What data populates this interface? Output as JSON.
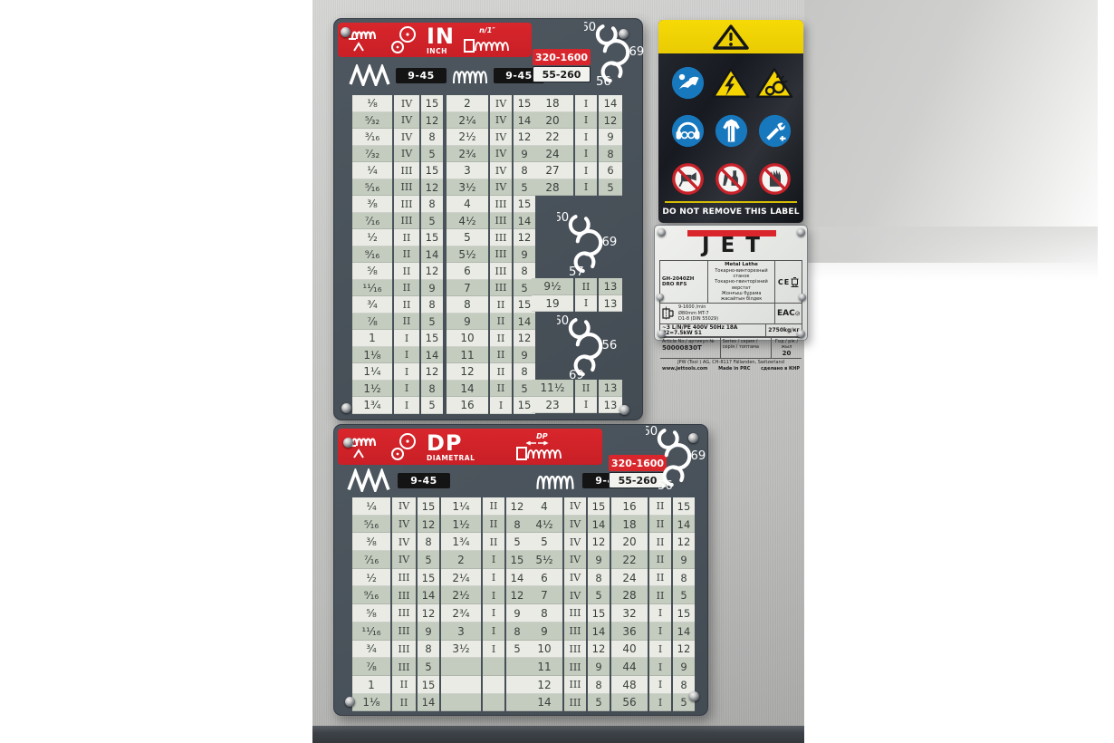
{
  "colors": {
    "plate_gray": "#49525a",
    "band_red": "#cf2127",
    "warning_yellow": "#f3d503",
    "mandatory_blue": "#1878be",
    "prohibit_red": "#c8222a",
    "cell_light": "#e9ebe4",
    "cell_dark": "#c4cbbf"
  },
  "in_plate": {
    "band": {
      "title": "IN",
      "subtitle": "INCH",
      "pitch_label": "n/1″"
    },
    "ranges": {
      "coarse": "9-45",
      "fine": "9-45",
      "rpm_high": "320-1600",
      "rpm_low": "55-260"
    },
    "gears": {
      "top": [
        "60",
        "69",
        "56"
      ],
      "mid": [
        "60",
        "69",
        "57"
      ],
      "bottom": [
        "60",
        "56",
        "69"
      ]
    },
    "table": {
      "block1": [
        [
          "¹⁄₈",
          "IV",
          "15"
        ],
        [
          "⁵⁄₃₂",
          "IV",
          "12"
        ],
        [
          "³⁄₁₆",
          "IV",
          "8"
        ],
        [
          "⁷⁄₃₂",
          "IV",
          "5"
        ],
        [
          "¹⁄₄",
          "III",
          "15"
        ],
        [
          "⁵⁄₁₆",
          "III",
          "12"
        ],
        [
          "³⁄₈",
          "III",
          "8"
        ],
        [
          "⁷⁄₁₆",
          "III",
          "5"
        ],
        [
          "¹⁄₂",
          "II",
          "15"
        ],
        [
          "⁹⁄₁₆",
          "II",
          "14"
        ],
        [
          "⁵⁄₈",
          "II",
          "12"
        ],
        [
          "¹¹⁄₁₆",
          "II",
          "9"
        ],
        [
          "³⁄₄",
          "II",
          "8"
        ],
        [
          "⁷⁄₈",
          "II",
          "5"
        ],
        [
          "1",
          "I",
          "15"
        ],
        [
          "1¹⁄₈",
          "I",
          "14"
        ],
        [
          "1¹⁄₄",
          "I",
          "12"
        ],
        [
          "1¹⁄₂",
          "I",
          "8"
        ],
        [
          "1³⁄₄",
          "I",
          "5"
        ]
      ],
      "block2": [
        [
          "2",
          "IV",
          "15"
        ],
        [
          "2¹⁄₄",
          "IV",
          "14"
        ],
        [
          "2¹⁄₂",
          "IV",
          "12"
        ],
        [
          "2³⁄₄",
          "IV",
          "9"
        ],
        [
          "3",
          "IV",
          "8"
        ],
        [
          "3¹⁄₂",
          "IV",
          "5"
        ],
        [
          "4",
          "III",
          "15"
        ],
        [
          "4¹⁄₂",
          "III",
          "14"
        ],
        [
          "5",
          "III",
          "12"
        ],
        [
          "5¹⁄₂",
          "III",
          "9"
        ],
        [
          "6",
          "III",
          "8"
        ],
        [
          "7",
          "III",
          "5"
        ],
        [
          "8",
          "II",
          "15"
        ],
        [
          "9",
          "II",
          "14"
        ],
        [
          "10",
          "II",
          "12"
        ],
        [
          "11",
          "II",
          "9"
        ],
        [
          "12",
          "II",
          "8"
        ],
        [
          "14",
          "II",
          "5"
        ],
        [
          "16",
          "I",
          "15"
        ]
      ],
      "block3_top": [
        [
          "18",
          "I",
          "14"
        ],
        [
          "20",
          "I",
          "12"
        ],
        [
          "22",
          "I",
          "9"
        ],
        [
          "24",
          "I",
          "8"
        ],
        [
          "27",
          "I",
          "6"
        ],
        [
          "28",
          "I",
          "5"
        ]
      ],
      "block3_mid": [
        [
          "9¹⁄₂",
          "II",
          "13"
        ],
        [
          "19",
          "I",
          "13"
        ]
      ],
      "block3_bottom": [
        [
          "11¹⁄₂",
          "II",
          "13"
        ],
        [
          "23",
          "I",
          "13"
        ]
      ]
    }
  },
  "dp_plate": {
    "band": {
      "title": "DP",
      "subtitle": "DIAMETRAL",
      "pitch_label": "DP"
    },
    "ranges": {
      "coarse": "9-45",
      "fine": "9-45",
      "rpm_high": "320-1600",
      "rpm_low": "55-260"
    },
    "gears": {
      "top": [
        "60",
        "69",
        "56"
      ]
    },
    "table": {
      "block1": [
        [
          "¹⁄₄",
          "IV",
          "15"
        ],
        [
          "⁵⁄₁₆",
          "IV",
          "12"
        ],
        [
          "³⁄₈",
          "IV",
          "8"
        ],
        [
          "⁷⁄₁₆",
          "IV",
          "5"
        ],
        [
          "¹⁄₂",
          "III",
          "15"
        ],
        [
          "⁹⁄₁₆",
          "III",
          "14"
        ],
        [
          "⁵⁄₈",
          "III",
          "12"
        ],
        [
          "¹¹⁄₁₆",
          "III",
          "9"
        ],
        [
          "³⁄₄",
          "III",
          "8"
        ],
        [
          "⁷⁄₈",
          "III",
          "5"
        ],
        [
          "1",
          "II",
          "15"
        ],
        [
          "1¹⁄₈",
          "II",
          "14"
        ]
      ],
      "block2": [
        [
          "1¹⁄₄",
          "II",
          "12"
        ],
        [
          "1¹⁄₂",
          "II",
          "8"
        ],
        [
          "1³⁄₄",
          "II",
          "5"
        ],
        [
          "2",
          "I",
          "15"
        ],
        [
          "2¹⁄₄",
          "I",
          "14"
        ],
        [
          "2¹⁄₂",
          "I",
          "12"
        ],
        [
          "2³⁄₄",
          "I",
          "9"
        ],
        [
          "3",
          "I",
          "8"
        ],
        [
          "3¹⁄₂",
          "I",
          "5"
        ],
        [
          "",
          "",
          ""
        ],
        [
          "",
          "",
          ""
        ],
        [
          "",
          "",
          ""
        ]
      ],
      "block3": [
        [
          "4",
          "IV",
          "15"
        ],
        [
          "4¹⁄₂",
          "IV",
          "14"
        ],
        [
          "5",
          "IV",
          "12"
        ],
        [
          "5¹⁄₂",
          "IV",
          "9"
        ],
        [
          "6",
          "IV",
          "8"
        ],
        [
          "7",
          "IV",
          "5"
        ],
        [
          "8",
          "III",
          "15"
        ],
        [
          "9",
          "III",
          "14"
        ],
        [
          "10",
          "III",
          "12"
        ],
        [
          "11",
          "III",
          "9"
        ],
        [
          "12",
          "III",
          "8"
        ],
        [
          "14",
          "III",
          "5"
        ]
      ],
      "block4": [
        [
          "16",
          "II",
          "15"
        ],
        [
          "18",
          "II",
          "14"
        ],
        [
          "20",
          "II",
          "12"
        ],
        [
          "22",
          "II",
          "9"
        ],
        [
          "24",
          "II",
          "8"
        ],
        [
          "28",
          "II",
          "5"
        ],
        [
          "32",
          "I",
          "15"
        ],
        [
          "36",
          "I",
          "14"
        ],
        [
          "40",
          "I",
          "12"
        ],
        [
          "44",
          "I",
          "9"
        ],
        [
          "48",
          "I",
          "8"
        ],
        [
          "56",
          "I",
          "5"
        ]
      ]
    }
  },
  "warning_label": {
    "footer": "DO NOT REMOVE THIS LABEL"
  },
  "nameplate": {
    "brand": "JET",
    "model": "GH-2040ZH DRO RFS",
    "product": "Metal Lathe",
    "product_ru": "Токарно-винторезный станок",
    "product_uk": "Токарно-гвинторізний верстат",
    "product_kk": "Жонғыш бұрама жасайтын білдек",
    "spec_speed": "9-1600 /min",
    "spec_spindle": "Ø80mm  MT-7",
    "spec_mount": "D1-8 (DIN 55029)",
    "power": "~3 L/N/PE 400V 50Hz 18A P2=7.5kW S1",
    "weight": "2750kg/кг",
    "article_label": "Article No./ артикул №",
    "article": "50000830T",
    "series_label": "Series / серия / серія / топтама",
    "year_label": "Год / рік / жыл",
    "year": "20",
    "address": "JPW (Tool ) AG, CH-8117 Fällanden, Switzerland",
    "website": "www.jettools.com",
    "made_in": "Made in PRC",
    "made_in_ru": "сделано в КНР",
    "ce": "CE",
    "eac": "EAC"
  }
}
